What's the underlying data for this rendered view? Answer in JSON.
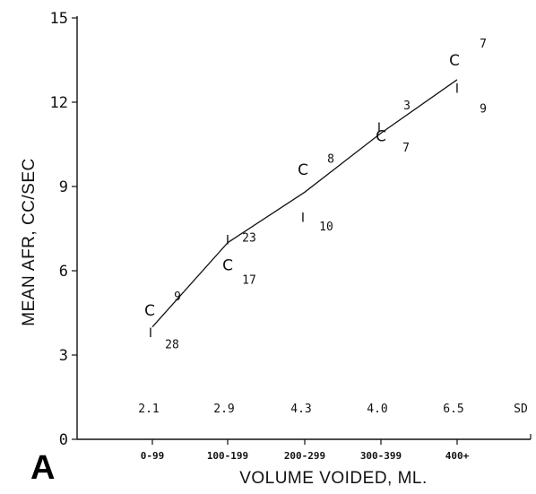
{
  "chart_data": {
    "type": "line",
    "panel_label": "A",
    "xlabel": "VOLUME VOIDED, ML.",
    "ylabel": "MEAN AFR, CC/SEC",
    "categories": [
      "0-99",
      "100-199",
      "200-299",
      "300-399",
      "400+"
    ],
    "ylim": [
      0,
      15
    ],
    "yticks": [
      0,
      3,
      6,
      9,
      12,
      15
    ],
    "grid": false,
    "series": [
      {
        "values": [
          4.0,
          7.0,
          8.8,
          10.9,
          12.8
        ],
        "markers_C": [
          4.6,
          6.2,
          9.6,
          10.8,
          13.5
        ],
        "markers_I": [
          3.8,
          7.1,
          7.9,
          11.1,
          12.5
        ]
      }
    ],
    "counts": [
      {
        "category": "0-99",
        "values": [
          "28",
          "9"
        ]
      },
      {
        "category": "100-199",
        "values": [
          "23",
          "17"
        ]
      },
      {
        "category": "200-299",
        "values": [
          "10",
          "8"
        ]
      },
      {
        "category": "300-399",
        "values": [
          "3",
          "7"
        ]
      },
      {
        "category": "400+",
        "values": [
          "9",
          "7"
        ]
      }
    ],
    "sd_label": "SD",
    "sd_values": [
      "2.1",
      "2.9",
      "4.3",
      "4.0",
      "6.5"
    ]
  }
}
